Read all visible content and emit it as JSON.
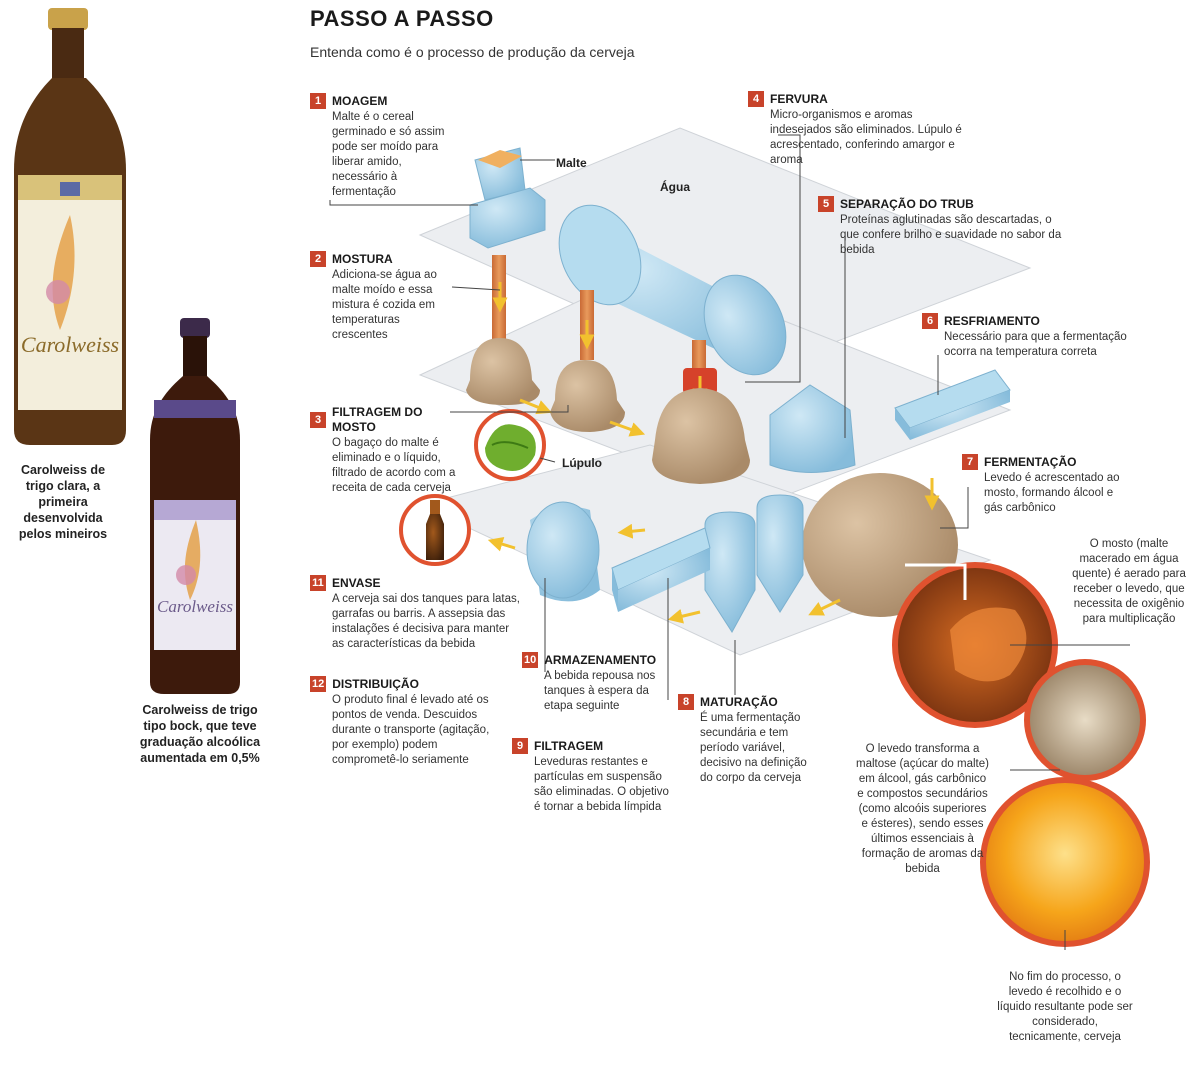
{
  "title": "PASSO A PASSO",
  "subtitle": "Entenda como é o processo de produção da cerveja",
  "bottles": [
    {
      "caption": "Carolweiss de trigo clara, a primeira desenvolvida pelos mineiros",
      "label_text": "Carolweiss"
    },
    {
      "caption": "Carolweiss de trigo tipo bock, que teve graduação alcoólica aumentada em 0,5%",
      "label_text": "Carolweiss"
    }
  ],
  "steps": [
    {
      "num": "1",
      "title": "MOAGEM",
      "text": "Malte é o cereal germinado e só assim pode ser moído para liberar amido, necessário à fermentação"
    },
    {
      "num": "2",
      "title": "MOSTURA",
      "text": "Adiciona-se água ao malte moído e essa mistura é cozida em temperaturas crescentes"
    },
    {
      "num": "3",
      "title": "FILTRAGEM DO MOSTO",
      "text": "O bagaço do malte é eliminado e o líquido, filtrado de acordo com a receita de cada cerveja"
    },
    {
      "num": "4",
      "title": "FERVURA",
      "text": "Micro-organismos e aromas indesejados são eliminados. Lúpulo é acrescentado, conferindo amargor e aroma"
    },
    {
      "num": "5",
      "title": "SEPARAÇÃO DO TRUB",
      "text": "Proteínas aglutinadas são descartadas, o que confere brilho e suavidade no sabor da bebida"
    },
    {
      "num": "6",
      "title": "RESFRIAMENTO",
      "text": "Necessário para que a fermentação ocorra na temperatura correta"
    },
    {
      "num": "7",
      "title": "FERMENTAÇÃO",
      "text": "Levedo é acrescentado ao mosto, formando álcool e gás carbônico"
    },
    {
      "num": "8",
      "title": "MATURAÇÃO",
      "text": "É uma fermentação secundária e tem período variável, decisivo na definição do corpo da cerveja"
    },
    {
      "num": "9",
      "title": "FILTRAGEM",
      "text": "Leveduras restantes e partículas em suspensão são eliminadas. O objetivo é tornar a bebida límpida"
    },
    {
      "num": "10",
      "title": "ARMAZENAMENTO",
      "text": "A bebida repousa nos tanques à espera da etapa seguinte"
    },
    {
      "num": "11",
      "title": "ENVASE",
      "text": "A cerveja sai dos tanques para latas, garrafas ou barris. A assepsia das instalações é decisiva para manter as características da bebida"
    },
    {
      "num": "12",
      "title": "DISTRIBUIÇÃO",
      "text": "O produto final é levado até os pontos de venda. Descuidos durante o transporte (agitação, por exemplo) podem comprometê-lo seriamente"
    }
  ],
  "labels": {
    "malte": "Malte",
    "agua": "Água",
    "lupulo": "Lúpulo"
  },
  "notes": [
    "O mosto (malte macerado em água quente) é aerado para receber o levedo, que necessita de oxigênio para multiplicação",
    "O levedo transforma a maltose (açúcar do malte) em álcool, gás carbônico e compostos secundários (como alcoóis superiores e ésteres), sendo esses últimos essenciais à formação de aromas da bebida",
    "No fim do processo, o levedo é recolhido e o líquido resultante pode ser considerado, tecnicamente, cerveja"
  ],
  "colors": {
    "accent": "#c8432a",
    "tank_blue": "#a9d3ea",
    "tank_brown": "#c9ab8a",
    "pipe_orange": "#e0762f",
    "arrow_yellow": "#f2c12e",
    "plate": "#eef0f2"
  }
}
